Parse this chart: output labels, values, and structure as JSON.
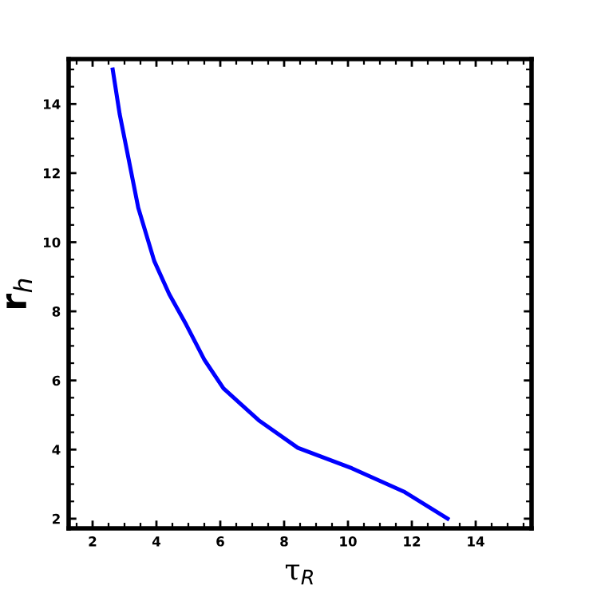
{
  "chart_data": {
    "type": "line",
    "xlabel": "τ$_{R}$",
    "ylabel": "r$_{h}$",
    "series": [
      {
        "color": "#0000ff",
        "x": [
          2.63,
          2.85,
          3.1,
          3.43,
          3.93,
          4.4,
          4.93,
          5.5,
          6.1,
          7.2,
          8.43,
          10.12,
          11.78,
          13.12
        ],
        "values": [
          15.0,
          13.7,
          12.54,
          11.0,
          9.46,
          8.5,
          7.62,
          6.6,
          5.77,
          4.85,
          4.05,
          3.46,
          2.77,
          2.0
        ]
      }
    ],
    "xlim": [
      1.25,
      15.75
    ],
    "ylim": [
      1.72,
      15.3
    ],
    "xticks": [
      2,
      4,
      6,
      8,
      10,
      12,
      14
    ],
    "yticks": [
      2,
      4,
      6,
      8,
      10,
      12,
      14
    ],
    "grid": false,
    "legend": false,
    "marker": "none",
    "line_style": "solid"
  }
}
